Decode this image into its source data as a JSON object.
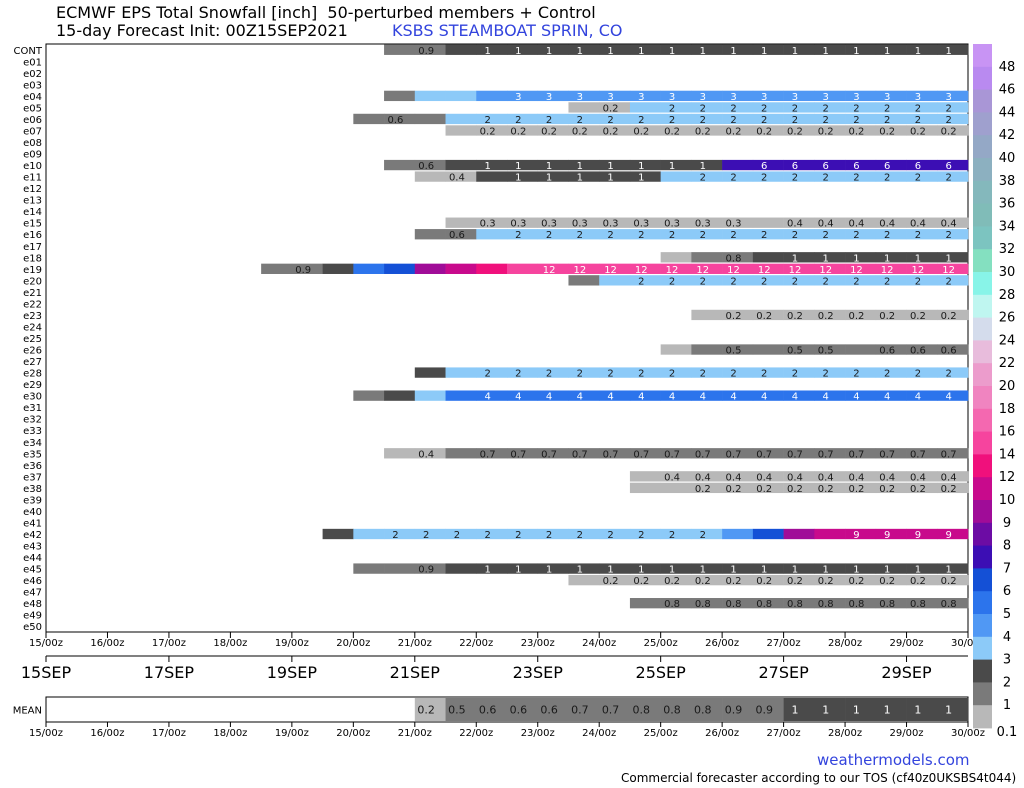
{
  "header": {
    "title_line1": "ECMWF EPS Total Snowfall [inch]  50-perturbed members + Control",
    "title_line2": "15-day Forecast Init: 00Z15SEP2021",
    "station": "KSBS STEAMBOAT SPRIN, CO"
  },
  "footer": {
    "site": "weathermodels.com",
    "tos": "Commercial forecaster according to our TOS (cf40z0UKSBS4t044)"
  },
  "chart_data": {
    "type": "heatmap",
    "title": "ECMWF EPS Total Snowfall [inch]",
    "units": "inch",
    "time_ticks": [
      "15/00z",
      "16/00z",
      "17/00z",
      "18/00z",
      "19/00z",
      "20/00z",
      "21/00z",
      "22/00z",
      "23/00z",
      "24/00z",
      "25/00z",
      "26/00z",
      "27/00z",
      "28/00z",
      "29/00z",
      "30/00z"
    ],
    "date_ticks": [
      "15SEP",
      "17SEP",
      "19SEP",
      "21SEP",
      "23SEP",
      "25SEP",
      "27SEP",
      "29SEP"
    ],
    "date_tick_days": [
      0,
      2,
      4,
      6,
      8,
      10,
      12,
      14
    ],
    "time_range_days": [
      0,
      15
    ],
    "step_hours": 12,
    "colorbar_labels": [
      "48",
      "46",
      "44",
      "42",
      "40",
      "38",
      "36",
      "34",
      "32",
      "30",
      "28",
      "26",
      "24",
      "22",
      "20",
      "18",
      "16",
      "14",
      "12",
      "10",
      "9",
      "8",
      "7",
      "6",
      "5",
      "4",
      "3",
      "2",
      "1",
      "0.1"
    ],
    "colorbar": [
      {
        "min": 46,
        "color": "#c894f4"
      },
      {
        "min": 44,
        "color": "#b98af0"
      },
      {
        "min": 42,
        "color": "#a996d6"
      },
      {
        "min": 40,
        "color": "#9fa0ce"
      },
      {
        "min": 38,
        "color": "#94a8c6"
      },
      {
        "min": 36,
        "color": "#8cb0c0"
      },
      {
        "min": 34,
        "color": "#84b8bc"
      },
      {
        "min": 32,
        "color": "#80bcb8"
      },
      {
        "min": 30,
        "color": "#7cc4c0"
      },
      {
        "min": 28,
        "color": "#84e0c0"
      },
      {
        "min": 26,
        "color": "#88f4e8"
      },
      {
        "min": 24,
        "color": "#bff6f0"
      },
      {
        "min": 22,
        "color": "#d4dcec"
      },
      {
        "min": 20,
        "color": "#e8bcdc"
      },
      {
        "min": 18,
        "color": "#ec9ccc"
      },
      {
        "min": 16,
        "color": "#f084c0"
      },
      {
        "min": 14,
        "color": "#f468b0"
      },
      {
        "min": 12,
        "color": "#f6449e"
      },
      {
        "min": 10,
        "color": "#f0107c"
      },
      {
        "min": 9,
        "color": "#c80a8c"
      },
      {
        "min": 8,
        "color": "#a00c98"
      },
      {
        "min": 7,
        "color": "#6c0ca4"
      },
      {
        "min": 6,
        "color": "#3c0eb4"
      },
      {
        "min": 5,
        "color": "#1450d6"
      },
      {
        "min": 4,
        "color": "#2c74ec"
      },
      {
        "min": 3,
        "color": "#5098f4"
      },
      {
        "min": 2,
        "color": "#8ccaf8"
      },
      {
        "min": 1,
        "color": "#4a4a4a"
      },
      {
        "min": 0.5,
        "color": "#7a7a7a"
      },
      {
        "min": 0.1,
        "color": "#b8b8b8"
      }
    ],
    "rows": [
      {
        "name": "CONT",
        "values": [
          {
            "v": 0.9,
            "n": 2
          },
          {
            "v": 1,
            "n": 17
          }
        ]
      },
      {
        "name": "e01",
        "values": []
      },
      {
        "name": "e02",
        "values": []
      },
      {
        "name": "e03",
        "values": []
      },
      {
        "name": "e04",
        "values": [
          {
            "v": 0.5,
            "n": 1
          },
          {
            "v": 2,
            "n": 1
          },
          {
            "v": 2,
            "n": 1
          },
          {
            "v": 3,
            "n": 16
          }
        ]
      },
      {
        "name": "e05",
        "values": [
          {
            "v": 0.2,
            "n": 2
          },
          {
            "v": 2,
            "n": 11
          }
        ]
      },
      {
        "name": "e06",
        "values": [
          {
            "v": 0.6,
            "n": 2
          },
          {
            "v": 0.6,
            "n": 1
          },
          {
            "v": 2,
            "n": 17
          }
        ]
      },
      {
        "name": "e07",
        "values": [
          {
            "v": 0.2,
            "n": 17
          }
        ]
      },
      {
        "name": "e08",
        "values": []
      },
      {
        "name": "e09",
        "values": []
      },
      {
        "name": "e10",
        "values": [
          {
            "v": 0.6,
            "n": 2
          },
          {
            "v": 1,
            "n": 9
          },
          {
            "v": 6,
            "n": 8
          }
        ]
      },
      {
        "name": "e11",
        "values": [
          {
            "v": 0.4,
            "n": 2
          },
          {
            "v": 1,
            "n": 6
          },
          {
            "v": 2,
            "n": 10
          }
        ]
      },
      {
        "name": "e12",
        "values": []
      },
      {
        "name": "e13",
        "values": []
      },
      {
        "name": "e14",
        "values": []
      },
      {
        "name": "e15",
        "values": [
          {
            "v": 0.3,
            "n": 10
          },
          {
            "v": 0.4,
            "n": 7
          }
        ]
      },
      {
        "name": "e16",
        "values": [
          {
            "v": 0.6,
            "n": 2
          },
          {
            "v": 2,
            "n": 16
          }
        ]
      },
      {
        "name": "e17",
        "values": []
      },
      {
        "name": "e18",
        "values": [
          {
            "v": 0.3,
            "n": 1
          },
          {
            "v": 0.8,
            "n": 2
          },
          {
            "v": 1,
            "n": 7
          }
        ]
      },
      {
        "name": "e19",
        "values": [
          {
            "v": 0.9,
            "n": 2
          },
          {
            "v": 1,
            "n": 1
          },
          {
            "v": 4,
            "n": 1
          },
          {
            "v": 5,
            "n": 1
          },
          {
            "v": 8,
            "n": 1
          },
          {
            "v": 9,
            "n": 1
          },
          {
            "v": 10,
            "n": 1
          },
          {
            "v": 12,
            "n": 15
          }
        ]
      },
      {
        "name": "e20",
        "values": [
          {
            "v": 0.8,
            "n": 1
          },
          {
            "v": 2,
            "n": 12
          }
        ]
      },
      {
        "name": "e21",
        "values": []
      },
      {
        "name": "e22",
        "values": []
      },
      {
        "name": "e23",
        "values": [
          {
            "v": 0.2,
            "n": 9
          }
        ]
      },
      {
        "name": "e24",
        "values": []
      },
      {
        "name": "e25",
        "values": []
      },
      {
        "name": "e26",
        "values": [
          {
            "v": 0.4,
            "n": 1
          },
          {
            "v": 0.5,
            "n": 2
          },
          {
            "v": 0.5,
            "n": 3
          },
          {
            "v": 0.6,
            "n": 4
          }
        ]
      },
      {
        "name": "e27",
        "values": []
      },
      {
        "name": "e28",
        "values": [
          {
            "v": 1,
            "n": 1
          },
          {
            "v": 2,
            "n": 17
          }
        ]
      },
      {
        "name": "e29",
        "values": []
      },
      {
        "name": "e30",
        "values": [
          {
            "v": 0.5,
            "n": 1
          },
          {
            "v": 1,
            "n": 1
          },
          {
            "v": 2,
            "n": 1
          },
          {
            "v": 4,
            "n": 17
          }
        ]
      },
      {
        "name": "e31",
        "values": []
      },
      {
        "name": "e32",
        "values": []
      },
      {
        "name": "e33",
        "values": []
      },
      {
        "name": "e34",
        "values": []
      },
      {
        "name": "e35",
        "values": [
          {
            "v": 0.4,
            "n": 2
          },
          {
            "v": 0.7,
            "n": 17
          }
        ]
      },
      {
        "name": "e36",
        "values": []
      },
      {
        "name": "e37",
        "values": [
          {
            "v": 0.4,
            "n": 11
          }
        ]
      },
      {
        "name": "e38",
        "values": [
          {
            "v": 0.1,
            "n": 1
          },
          {
            "v": 0.2,
            "n": 10
          }
        ]
      },
      {
        "name": "e39",
        "values": []
      },
      {
        "name": "e40",
        "values": []
      },
      {
        "name": "e41",
        "values": []
      },
      {
        "name": "e42",
        "values": [
          {
            "v": 1,
            "n": 1
          },
          {
            "v": 2,
            "n": 12
          },
          {
            "v": 3,
            "n": 1
          },
          {
            "v": 5,
            "n": 1
          },
          {
            "v": 8,
            "n": 1
          },
          {
            "v": 9,
            "n": 5
          }
        ]
      },
      {
        "name": "e43",
        "values": []
      },
      {
        "name": "e44",
        "values": []
      },
      {
        "name": "e45",
        "values": [
          {
            "v": 0.5,
            "n": 1
          },
          {
            "v": 0.9,
            "n": 2
          },
          {
            "v": 1,
            "n": 17
          }
        ]
      },
      {
        "name": "e46",
        "values": [
          {
            "v": 0.2,
            "n": 13
          }
        ]
      },
      {
        "name": "e47",
        "values": []
      },
      {
        "name": "e48",
        "values": [
          {
            "v": 0.8,
            "n": 11
          }
        ]
      },
      {
        "name": "e49",
        "values": []
      },
      {
        "name": "e50",
        "values": []
      }
    ],
    "mean": {
      "label": "MEAN",
      "values": [
        {
          "v": 0.2,
          "n": 1
        },
        {
          "v": 0.5,
          "n": 1
        },
        {
          "v": 0.6,
          "n": 3
        },
        {
          "v": 0.7,
          "n": 2
        },
        {
          "v": 0.8,
          "n": 3
        },
        {
          "v": 0.9,
          "n": 2
        },
        {
          "v": 1,
          "n": 6
        }
      ]
    }
  }
}
